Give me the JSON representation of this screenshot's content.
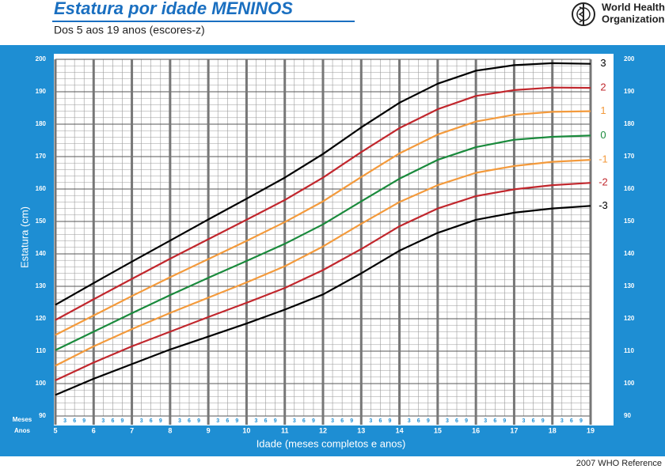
{
  "chart_data": {
    "type": "line",
    "title": "Estatura por idade MENINOS",
    "subtitle": "Dos 5 aos 19 anos (escores-z)",
    "x_label": "Idade (meses completos e anos)",
    "y_label": "Estatura (cm)",
    "months_label": "Meses",
    "years_label": "Anos",
    "x": [
      5,
      6,
      7,
      8,
      9,
      10,
      11,
      12,
      13,
      14,
      15,
      16,
      17,
      18,
      19
    ],
    "series": [
      {
        "name": "3",
        "color": "#000000",
        "values": [
          124.3,
          131,
          137.6,
          144.1,
          150.6,
          157,
          163.5,
          170.8,
          179,
          186.6,
          192.5,
          196.5,
          198.2,
          198.8,
          198.6
        ]
      },
      {
        "name": "2",
        "color": "#c1272d",
        "values": [
          119.6,
          126,
          132.3,
          138.5,
          144.5,
          150.5,
          156.6,
          163.5,
          171.4,
          178.8,
          184.6,
          188.7,
          190.5,
          191.3,
          191.2
        ]
      },
      {
        "name": "1",
        "color": "#f39a3c",
        "values": [
          115,
          121,
          127,
          132.8,
          138.4,
          144,
          149.8,
          156.2,
          163.7,
          171,
          176.8,
          180.8,
          182.9,
          183.8,
          184
        ]
      },
      {
        "name": "0",
        "color": "#1a8a3c",
        "values": [
          110.3,
          116,
          121.7,
          127.3,
          132.6,
          137.8,
          143.1,
          149.1,
          156.2,
          163.2,
          169,
          172.9,
          175.2,
          176.1,
          176.5
        ]
      },
      {
        "name": "-1",
        "color": "#f39a3c",
        "values": [
          105.5,
          111.5,
          116.8,
          121.8,
          126.5,
          131.2,
          136.2,
          142.3,
          149.3,
          156,
          161.2,
          165,
          167.1,
          168.4,
          169
        ]
      },
      {
        "name": "-2",
        "color": "#c1272d",
        "values": [
          101,
          106.5,
          111.5,
          116,
          120.5,
          124.9,
          129.5,
          135,
          141.5,
          148.5,
          154,
          157.8,
          159.9,
          161.2,
          161.9
        ]
      },
      {
        "name": "-3",
        "color": "#000000",
        "values": [
          96.5,
          101.5,
          106,
          110.5,
          114.5,
          118.5,
          122.8,
          127.5,
          134,
          141,
          146.5,
          150.5,
          152.7,
          154,
          154.8
        ]
      }
    ],
    "xlim": [
      5,
      19
    ],
    "xticks": [
      5,
      6,
      7,
      8,
      9,
      10,
      11,
      12,
      13,
      14,
      15,
      16,
      17,
      18,
      19
    ],
    "minor_xticks": [
      {
        "value": 5.25,
        "label": "3"
      },
      {
        "value": 5.5,
        "label": "6"
      },
      {
        "value": 5.75,
        "label": "9"
      },
      {
        "value": 6.25,
        "label": "3"
      },
      {
        "value": 6.5,
        "label": "6"
      },
      {
        "value": 6.75,
        "label": "9"
      },
      {
        "value": 7.25,
        "label": "3"
      },
      {
        "value": 7.5,
        "label": "6"
      },
      {
        "value": 7.75,
        "label": "9"
      },
      {
        "value": 8.25,
        "label": "3"
      },
      {
        "value": 8.5,
        "label": "6"
      },
      {
        "value": 8.75,
        "label": "9"
      },
      {
        "value": 9.25,
        "label": "3"
      },
      {
        "value": 9.5,
        "label": "6"
      },
      {
        "value": 9.75,
        "label": "9"
      },
      {
        "value": 10.25,
        "label": "3"
      },
      {
        "value": 10.5,
        "label": "6"
      },
      {
        "value": 10.75,
        "label": "9"
      },
      {
        "value": 11.25,
        "label": "3"
      },
      {
        "value": 11.5,
        "label": "6"
      },
      {
        "value": 11.75,
        "label": "9"
      },
      {
        "value": 12.25,
        "label": "3"
      },
      {
        "value": 12.5,
        "label": "6"
      },
      {
        "value": 12.75,
        "label": "9"
      },
      {
        "value": 13.25,
        "label": "3"
      },
      {
        "value": 13.5,
        "label": "6"
      },
      {
        "value": 13.75,
        "label": "9"
      },
      {
        "value": 14.25,
        "label": "3"
      },
      {
        "value": 14.5,
        "label": "6"
      },
      {
        "value": 14.75,
        "label": "9"
      },
      {
        "value": 15.25,
        "label": "3"
      },
      {
        "value": 15.5,
        "label": "6"
      },
      {
        "value": 15.75,
        "label": "9"
      },
      {
        "value": 16.25,
        "label": "3"
      },
      {
        "value": 16.5,
        "label": "6"
      },
      {
        "value": 16.75,
        "label": "9"
      },
      {
        "value": 17.25,
        "label": "3"
      },
      {
        "value": 17.5,
        "label": "6"
      },
      {
        "value": 17.75,
        "label": "9"
      },
      {
        "value": 18.25,
        "label": "3"
      },
      {
        "value": 18.5,
        "label": "6"
      },
      {
        "value": 18.75,
        "label": "9"
      }
    ],
    "ylim": [
      90,
      200
    ],
    "yticks": [
      90,
      100,
      110,
      120,
      130,
      140,
      150,
      160,
      170,
      180,
      190,
      200
    ],
    "minor_yticks": [
      92,
      94,
      96,
      98,
      102,
      104,
      106,
      108,
      112,
      114,
      116,
      118,
      122,
      124,
      126,
      128,
      132,
      134,
      136,
      138,
      142,
      144,
      146,
      148,
      152,
      154,
      156,
      158,
      162,
      164,
      166,
      168,
      172,
      174,
      176,
      178,
      182,
      184,
      186,
      188,
      192,
      194,
      196,
      198
    ],
    "grid": true,
    "legend": "right"
  },
  "organization": [
    "World Health",
    "Organization"
  ],
  "footer": "2007 WHO Reference"
}
